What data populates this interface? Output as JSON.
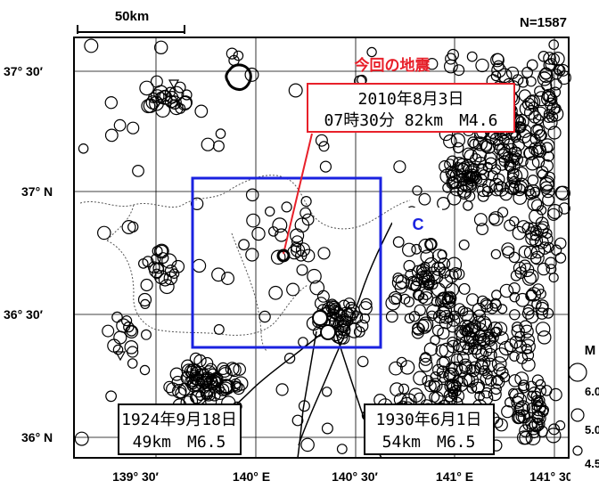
{
  "scale_bar": {
    "label": "50km"
  },
  "event_count": "N=1587",
  "latitude_labels": [
    "37° 30′",
    "37° N",
    "36° 30′",
    "36° N"
  ],
  "longitude_labels": [
    "139° 30′",
    "140° E",
    "140° 30′",
    "141° E",
    "141° 30′"
  ],
  "current_quake": {
    "heading": "今回の地震",
    "line1": "2010年8月3日",
    "line2": "07時30分 82km　M4.6",
    "color": "#e8202a"
  },
  "region_box": {
    "label": "C",
    "color": "#1a22e0"
  },
  "historical_quakes": [
    {
      "line1": "1924年9月18日",
      "line2": "49km　M6.5"
    },
    {
      "line1": "1930年6月1日",
      "line2": "54km　M6.5"
    }
  ],
  "magnitude_legend": {
    "title": "M",
    "levels": [
      "6.0",
      "5.0",
      "4.5"
    ]
  }
}
